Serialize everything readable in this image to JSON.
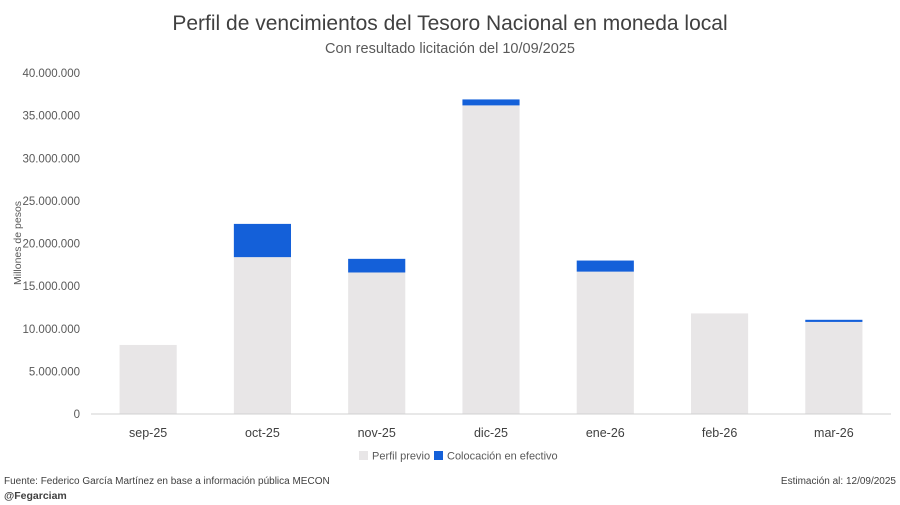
{
  "chart_data": {
    "type": "bar",
    "stacked": true,
    "title": "Perfil de vencimientos del Tesoro Nacional en moneda local",
    "subtitle": "Con resultado licitación del 10/09/2025",
    "xlabel": "",
    "ylabel": "Millones de pesos",
    "ylim": [
      0,
      40000000
    ],
    "yticks": [
      0,
      5000000,
      10000000,
      15000000,
      20000000,
      25000000,
      30000000,
      35000000,
      40000000
    ],
    "ytick_labels": [
      "0",
      "5.000.000",
      "10.000.000",
      "15.000.000",
      "20.000.000",
      "25.000.000",
      "30.000.000",
      "35.000.000",
      "40.000.000"
    ],
    "categories": [
      "sep-25",
      "oct-25",
      "nov-25",
      "dic-25",
      "ene-26",
      "feb-26",
      "mar-26"
    ],
    "series": [
      {
        "name": "Perfil previo",
        "color": "#e8e6e7",
        "values": [
          8100000,
          18400000,
          16600000,
          36200000,
          16700000,
          11800000,
          10800000
        ]
      },
      {
        "name": "Colocación en efectivo",
        "color": "#1460d9",
        "values": [
          0,
          3900000,
          1600000,
          700000,
          1300000,
          0,
          250000
        ]
      }
    ],
    "legend_position": "bottom"
  },
  "footer": {
    "source": "Fuente: Federico García Martínez en base a información pública MECON",
    "handle": "@Fegarciam",
    "estimate": "Estimación al: 12/09/2025"
  }
}
